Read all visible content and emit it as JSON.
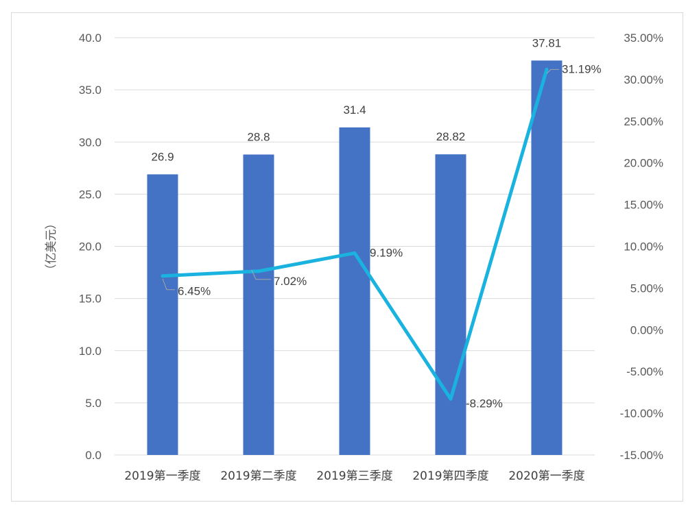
{
  "chart_data": {
    "type": "bar",
    "categories": [
      "2019第一季度",
      "2019第二季度",
      "2019第三季度",
      "2019第四季度",
      "2020第一季度"
    ],
    "ylabel": "（亿美元）",
    "ylim": [
      0,
      40
    ],
    "y_ticks": [
      "0.0",
      "5.0",
      "10.0",
      "15.0",
      "20.0",
      "25.0",
      "30.0",
      "35.0",
      "40.0"
    ],
    "y2lim": [
      -15,
      35
    ],
    "y2_ticks": [
      "-15.00%",
      "-10.00%",
      "-5.00%",
      "0.00%",
      "5.00%",
      "10.00%",
      "15.00%",
      "20.00%",
      "25.00%",
      "30.00%",
      "35.00%"
    ],
    "grid": true,
    "series": [
      {
        "type": "bar",
        "axis": "left",
        "values": [
          26.9,
          28.8,
          31.4,
          28.82,
          37.81
        ],
        "labels": [
          "26.9",
          "28.8",
          "31.4",
          "28.82",
          "37.81"
        ],
        "color": "#4472c4"
      },
      {
        "type": "line",
        "axis": "right",
        "values": [
          6.45,
          7.02,
          9.19,
          -8.29,
          31.19
        ],
        "labels": [
          "6.45%",
          "7.02%",
          "9.19%",
          "-8.29%",
          "31.19%"
        ],
        "color": "#1ab3e0"
      }
    ]
  }
}
